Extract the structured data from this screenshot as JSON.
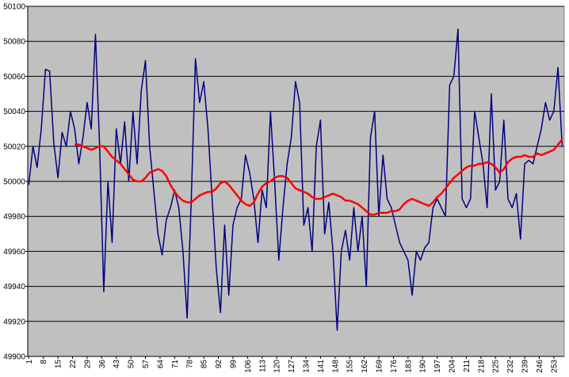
{
  "chart_data": {
    "type": "line",
    "x": [
      1,
      3,
      5,
      7,
      9,
      11,
      13,
      15,
      17,
      19,
      21,
      23,
      25,
      27,
      29,
      31,
      33,
      35,
      37,
      39,
      41,
      43,
      45,
      47,
      49,
      51,
      53,
      55,
      57,
      59,
      61,
      63,
      65,
      67,
      69,
      71,
      73,
      75,
      77,
      79,
      81,
      83,
      85,
      87,
      89,
      91,
      93,
      95,
      97,
      99,
      101,
      103,
      105,
      107,
      109,
      111,
      113,
      115,
      117,
      119,
      121,
      123,
      125,
      127,
      129,
      131,
      133,
      135,
      137,
      139,
      141,
      143,
      145,
      147,
      149,
      151,
      153,
      155,
      157,
      159,
      161,
      163,
      165,
      167,
      169,
      171,
      173,
      175,
      177,
      179,
      181,
      183,
      185,
      187,
      189,
      191,
      193,
      195,
      197,
      199,
      201,
      203,
      205,
      207,
      209,
      211,
      213,
      215,
      217,
      219,
      221,
      223,
      225,
      227,
      229,
      231,
      233,
      235,
      237,
      239,
      241,
      243,
      245,
      247,
      249,
      251,
      253,
      255,
      257
    ],
    "series": [
      {
        "color": "#000080",
        "values": [
          49998,
          50020,
          50008,
          50030,
          50064,
          50063,
          50022,
          50002,
          50028,
          50020,
          50040,
          50030,
          50010,
          50025,
          50045,
          50030,
          50084,
          50020,
          49937,
          50000,
          49965,
          50030,
          50010,
          50034,
          50000,
          50040,
          50010,
          50052,
          50069,
          50020,
          49995,
          49970,
          49958,
          49978,
          49985,
          49995,
          49985,
          49960,
          49922,
          49990,
          50070,
          50045,
          50057,
          50030,
          49990,
          49950,
          49925,
          49975,
          49935,
          49975,
          49985,
          49990,
          50015,
          50005,
          49990,
          49965,
          49995,
          49985,
          50040,
          50000,
          49955,
          49985,
          50010,
          50025,
          50057,
          50045,
          49975,
          49985,
          49960,
          50020,
          50035,
          49970,
          49988,
          49960,
          49915,
          49960,
          49972,
          49955,
          49985,
          49960,
          49980,
          49940,
          50025,
          50040,
          49980,
          50015,
          49990,
          49985,
          49975,
          49965,
          49960,
          49955,
          49935,
          49960,
          49955,
          49962,
          49965,
          49985,
          49990,
          49985,
          49980,
          50055,
          50060,
          50087,
          49990,
          49985,
          49990,
          50040,
          50025,
          50010,
          49985,
          50050,
          49995,
          50000,
          50035,
          49990,
          49985,
          49993,
          49967,
          50010,
          50012,
          50010,
          50020,
          50030,
          50045,
          50035,
          50040,
          50065,
          50020
        ]
      },
      {
        "color": "#ff0000",
        "values": [
          null,
          null,
          null,
          null,
          null,
          null,
          null,
          null,
          null,
          null,
          null,
          50021,
          50021,
          50020,
          50019,
          50018,
          50019,
          50020,
          50020,
          50017,
          50014,
          50012,
          50010,
          50007,
          50004,
          50001,
          50000,
          50000,
          50002,
          50005,
          50006,
          50007,
          50006,
          50003,
          49998,
          49994,
          49991,
          49989,
          49988,
          49988,
          49990,
          49992,
          49993,
          49994,
          49994,
          49996,
          49999,
          50000,
          49998,
          49995,
          49992,
          49989,
          49987,
          49986,
          49988,
          49993,
          49997,
          49999,
          50000,
          50002,
          50003,
          50003,
          50002,
          49999,
          49996,
          49995,
          49994,
          49993,
          49991,
          49990,
          49990,
          49991,
          49992,
          49993,
          49992,
          49991,
          49989,
          49989,
          49988,
          49987,
          49985,
          49983,
          49981,
          49981,
          49982,
          49982,
          49982,
          49983,
          49983,
          49984,
          49987,
          49989,
          49990,
          49989,
          49988,
          49987,
          49986,
          49988,
          49991,
          49993,
          49996,
          49999,
          50002,
          50004,
          50006,
          50008,
          50009,
          50009,
          50010,
          50010,
          50011,
          50010,
          50008,
          50005,
          50007,
          50011,
          50013,
          50014,
          50014,
          50015,
          50014,
          50014,
          50016,
          50015,
          50016,
          50017,
          50018,
          50021,
          50024
        ]
      }
    ],
    "xlim": [
      0.5,
      258
    ],
    "xticks": [
      1,
      8,
      15,
      22,
      29,
      36,
      43,
      50,
      57,
      64,
      71,
      78,
      85,
      92,
      99,
      106,
      113,
      120,
      127,
      134,
      141,
      148,
      155,
      162,
      169,
      176,
      183,
      190,
      197,
      204,
      211,
      218,
      225,
      232,
      239,
      246,
      253
    ],
    "ylim": [
      49900,
      50100
    ],
    "yticks": [
      49900,
      49920,
      49940,
      49960,
      49980,
      50000,
      50020,
      50040,
      50060,
      50080,
      50100
    ],
    "grid": true
  }
}
